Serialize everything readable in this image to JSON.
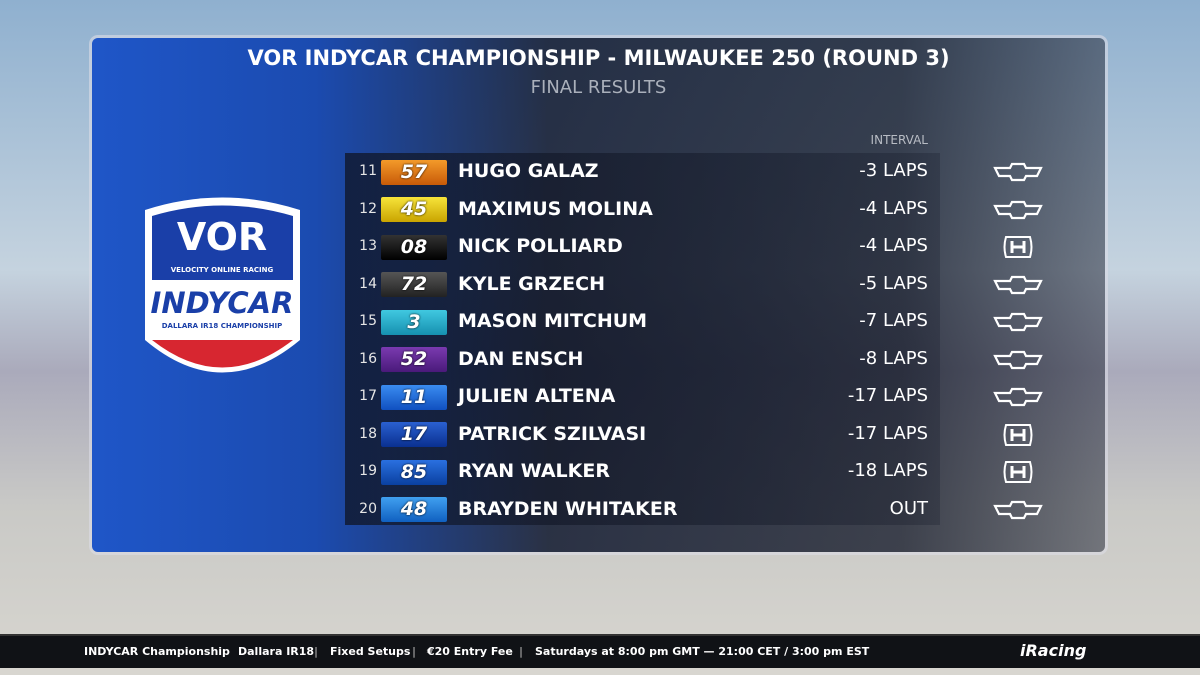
{
  "header": {
    "title": "VOR INDYCAR CHAMPIONSHIP - MILWAUKEE 250 (ROUND 3)",
    "subtitle": "FINAL RESULTS",
    "interval_label": "INTERVAL"
  },
  "logo": {
    "brand": "VOR",
    "brand_sub": "VELOCITY ONLINE RACING",
    "series": "INDYCAR",
    "series_sub": "DALLARA IR18 CHAMPIONSHIP"
  },
  "table": {
    "rows": [
      {
        "position": 11,
        "number": "57",
        "driver": "HUGO GALAZ",
        "interval": "-3 LAPS"
      },
      {
        "position": 12,
        "number": "45",
        "driver": "MAXIMUS MOLINA",
        "interval": "-4 LAPS"
      },
      {
        "position": 13,
        "number": "08",
        "driver": "NICK POLLIARD",
        "interval": "-4 LAPS"
      },
      {
        "position": 14,
        "number": "72",
        "driver": "KYLE GRZECH",
        "interval": "-5 LAPS"
      },
      {
        "position": 15,
        "number": "3",
        "driver": "MASON MITCHUM",
        "interval": "-7 LAPS"
      },
      {
        "position": 16,
        "number": "52",
        "driver": "DAN ENSCH",
        "interval": "-8 LAPS"
      },
      {
        "position": 17,
        "number": "11",
        "driver": "JULIEN ALTENA",
        "interval": "-17 LAPS"
      },
      {
        "position": 18,
        "number": "17",
        "driver": "PATRICK SZILVASI",
        "interval": "-17 LAPS"
      },
      {
        "position": 19,
        "number": "85",
        "driver": "RYAN WALKER",
        "interval": "-18 LAPS"
      },
      {
        "position": 20,
        "number": "48",
        "driver": "BRAYDEN WHITAKER",
        "interval": "OUT"
      }
    ]
  },
  "footer": {
    "series": "INDYCAR Championship",
    "items": [
      "Dallara IR18",
      "Fixed Setups",
      "€20 Entry Fee",
      "Saturdays at 8:00 pm GMT — 21:00 CET / 3:00 pm EST"
    ],
    "brand": "iRacing"
  }
}
